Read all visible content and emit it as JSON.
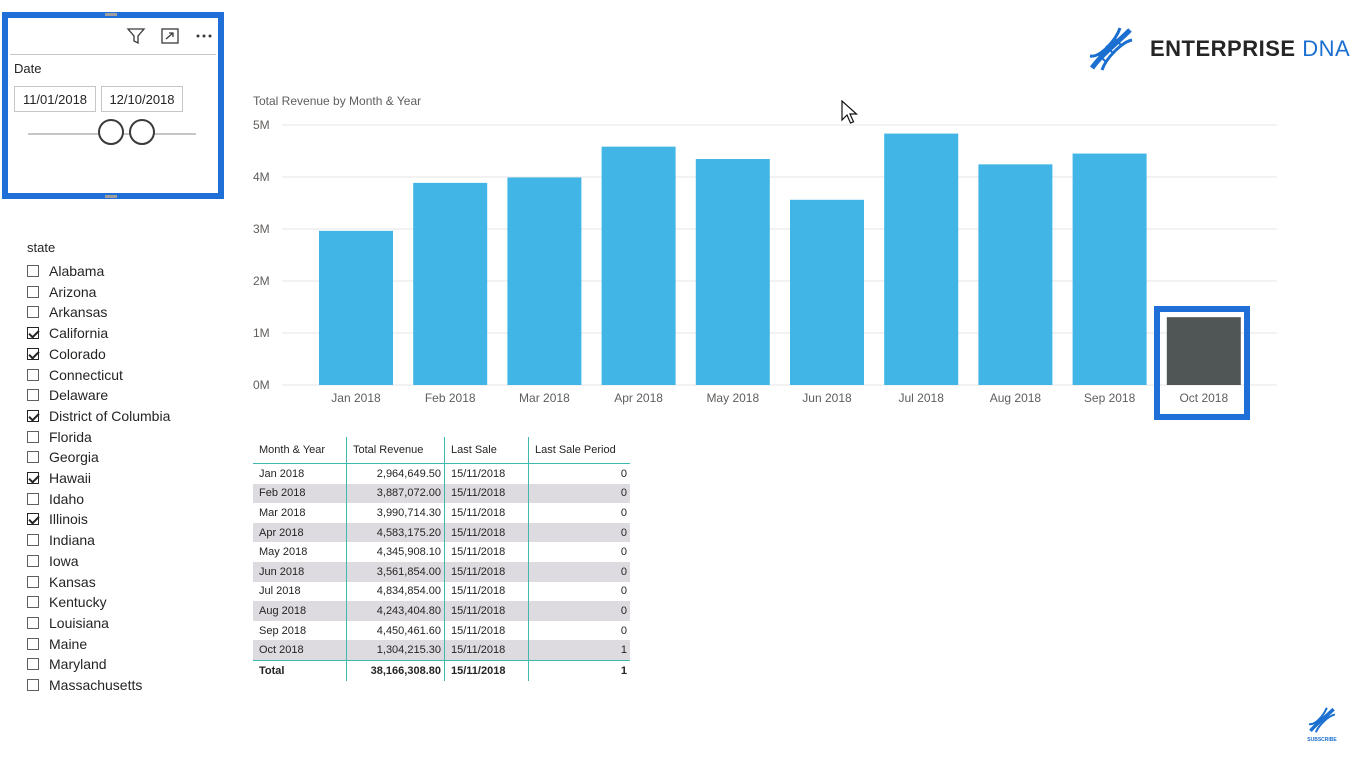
{
  "date_slicer": {
    "title": "Date",
    "start": "11/01/2018",
    "end": "12/10/2018",
    "icons": [
      "filter-icon",
      "focus-mode-icon",
      "more-options-icon"
    ]
  },
  "state_slicer": {
    "title": "state",
    "items": [
      {
        "label": "Alabama",
        "checked": false
      },
      {
        "label": "Arizona",
        "checked": false
      },
      {
        "label": "Arkansas",
        "checked": false
      },
      {
        "label": "California",
        "checked": true
      },
      {
        "label": "Colorado",
        "checked": true
      },
      {
        "label": "Connecticut",
        "checked": false
      },
      {
        "label": "Delaware",
        "checked": false
      },
      {
        "label": "District of Columbia",
        "checked": true
      },
      {
        "label": "Florida",
        "checked": false
      },
      {
        "label": "Georgia",
        "checked": false
      },
      {
        "label": "Hawaii",
        "checked": true
      },
      {
        "label": "Idaho",
        "checked": false
      },
      {
        "label": "Illinois",
        "checked": true
      },
      {
        "label": "Indiana",
        "checked": false
      },
      {
        "label": "Iowa",
        "checked": false
      },
      {
        "label": "Kansas",
        "checked": false
      },
      {
        "label": "Kentucky",
        "checked": false
      },
      {
        "label": "Louisiana",
        "checked": false
      },
      {
        "label": "Maine",
        "checked": false
      },
      {
        "label": "Maryland",
        "checked": false
      },
      {
        "label": "Massachusetts",
        "checked": false
      }
    ]
  },
  "logo": {
    "word1": "ENTERPRISE",
    "word2": "DNA"
  },
  "subscribe_label": "SUBSCRIBE",
  "chart_data": {
    "type": "bar",
    "title": "Total Revenue by Month & Year",
    "categories": [
      "Jan 2018",
      "Feb 2018",
      "Mar 2018",
      "Apr 2018",
      "May 2018",
      "Jun 2018",
      "Jul 2018",
      "Aug 2018",
      "Sep 2018",
      "Oct 2018"
    ],
    "values": [
      2964649.5,
      3887072.0,
      3990714.3,
      4583175.2,
      4345908.1,
      3561854.0,
      4834854.0,
      4243404.8,
      4450461.6,
      1304215.3
    ],
    "y_ticks": [
      "0M",
      "1M",
      "2M",
      "3M",
      "4M",
      "5M"
    ],
    "ylim": [
      0,
      5000000
    ],
    "grid": true,
    "bar_color": "#41b6e6",
    "highlight_color": "#505555",
    "highlight_index": 9
  },
  "table": {
    "columns": [
      "Month & Year",
      "Total Revenue",
      "Last Sale",
      "Last Sale Period"
    ],
    "rows": [
      [
        "Jan 2018",
        "2,964,649.50",
        "15/11/2018",
        "0"
      ],
      [
        "Feb 2018",
        "3,887,072.00",
        "15/11/2018",
        "0"
      ],
      [
        "Mar 2018",
        "3,990,714.30",
        "15/11/2018",
        "0"
      ],
      [
        "Apr 2018",
        "4,583,175.20",
        "15/11/2018",
        "0"
      ],
      [
        "May 2018",
        "4,345,908.10",
        "15/11/2018",
        "0"
      ],
      [
        "Jun 2018",
        "3,561,854.00",
        "15/11/2018",
        "0"
      ],
      [
        "Jul 2018",
        "4,834,854.00",
        "15/11/2018",
        "0"
      ],
      [
        "Aug 2018",
        "4,243,404.80",
        "15/11/2018",
        "0"
      ],
      [
        "Sep 2018",
        "4,450,461.60",
        "15/11/2018",
        "0"
      ],
      [
        "Oct 2018",
        "1,304,215.30",
        "15/11/2018",
        "1"
      ]
    ],
    "total": [
      "Total",
      "38,166,308.80",
      "15/11/2018",
      "1"
    ]
  }
}
